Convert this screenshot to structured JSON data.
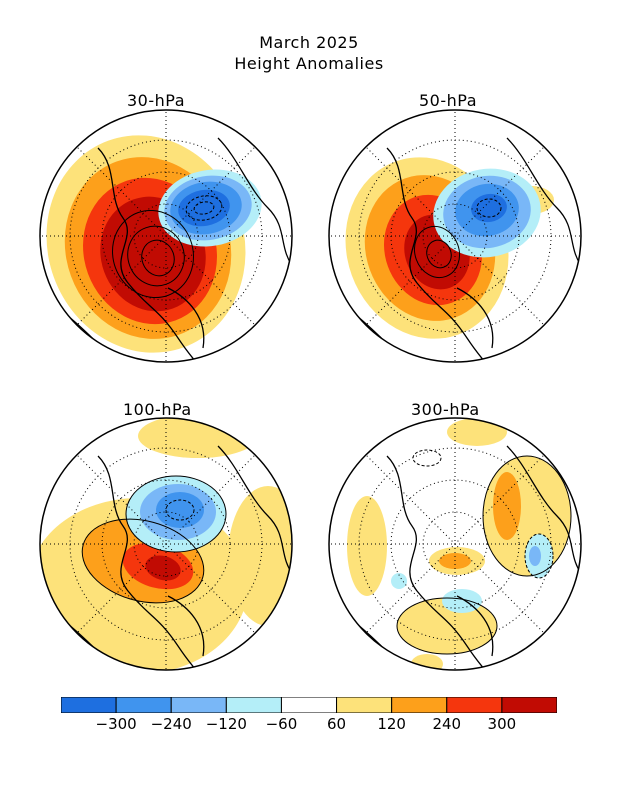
{
  "title": {
    "line1": "March 2025",
    "line2": "Height Anomalies"
  },
  "panels": [
    {
      "label": "30-hPa"
    },
    {
      "label": "50-hPa"
    },
    {
      "label": "100-hPa"
    },
    {
      "label": "300-hPa"
    }
  ],
  "colorbar": {
    "colors": [
      "#1e6fe0",
      "#4094ee",
      "#79b7f7",
      "#b4eef8",
      "#ffffff",
      "#fde27a",
      "#fda01b",
      "#f5360d",
      "#c10b03"
    ],
    "tick_labels": [
      "−300",
      "−240",
      "−120",
      "−60",
      "60",
      "120",
      "240",
      "300"
    ]
  }
}
